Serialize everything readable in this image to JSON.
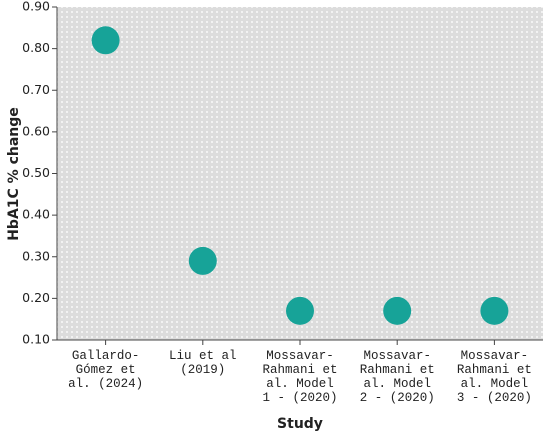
{
  "chart_data": {
    "type": "scatter",
    "categories": [
      "Gallardo-\nGómez et\nal. (2024)",
      "Liu et al\n(2019)",
      "Mossavar-\nRahmani et\nal. Model\n1 - (2020)",
      "Mossavar-\nRahmani et\nal. Model\n2 - (2020)",
      "Mossavar-\nRahmani et\nal. Model\n3 - (2020)"
    ],
    "values": [
      0.82,
      0.29,
      0.17,
      0.17,
      0.17
    ],
    "color": "#17a398",
    "xlabel": "Study",
    "ylabel": "HbA1C % change",
    "ylim": [
      0.1,
      0.9
    ],
    "yticks": [
      {
        "value": 0.1,
        "label": "0.10"
      },
      {
        "value": 0.2,
        "label": "0.20"
      },
      {
        "value": 0.3,
        "label": "0.30"
      },
      {
        "value": 0.4,
        "label": "0.40"
      },
      {
        "value": 0.5,
        "label": "0.50"
      },
      {
        "value": 0.6,
        "label": "0.60"
      },
      {
        "value": 0.7,
        "label": "0.70"
      },
      {
        "value": 0.8,
        "label": "0.80"
      },
      {
        "value": 0.9,
        "label": "0.90"
      }
    ]
  }
}
